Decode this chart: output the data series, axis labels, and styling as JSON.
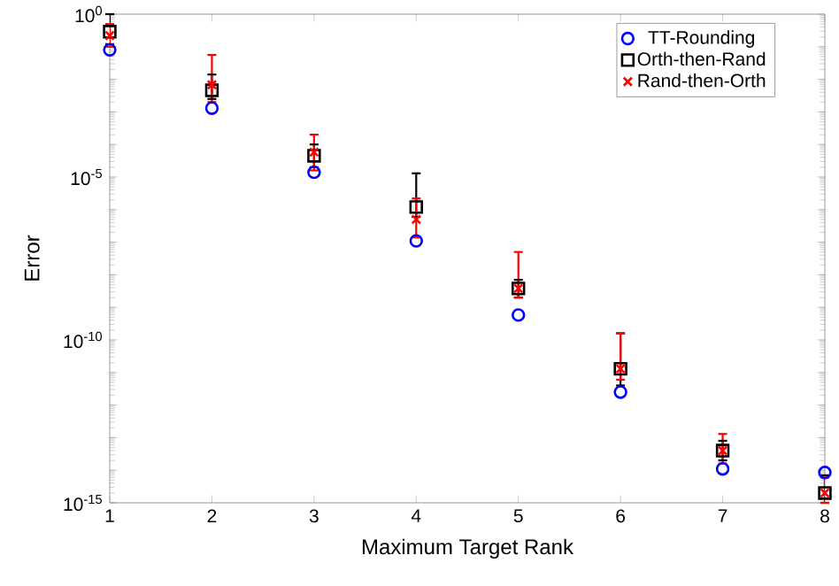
{
  "chart_data": {
    "type": "scatter",
    "xlabel": "Maximum Target Rank",
    "ylabel": "Error",
    "log": "y",
    "legend": "top right",
    "x": [
      1,
      2,
      3,
      4,
      5,
      6,
      7,
      8
    ],
    "xlim": [
      1,
      8
    ],
    "xticks": [
      1,
      2,
      3,
      4,
      5,
      6,
      7,
      8
    ],
    "ylim": [
      1e-15,
      1
    ],
    "yticks": [
      {
        "value": 1e-15,
        "label": "10$^{-15}$"
      },
      {
        "value": 1e-14,
        "label": null
      },
      {
        "value": 1e-13,
        "label": null
      },
      {
        "value": 1e-12,
        "label": null
      },
      {
        "value": 1e-11,
        "label": null
      },
      {
        "value": 1e-10,
        "label": "10$^{-10}$"
      },
      {
        "value": 1e-09,
        "label": null
      },
      {
        "value": 1e-08,
        "label": null
      },
      {
        "value": 1e-07,
        "label": null
      },
      {
        "value": 1e-06,
        "label": null
      },
      {
        "value": 1e-05,
        "label": "10$^{-5}$"
      },
      {
        "value": 0.0001,
        "label": null
      },
      {
        "value": 0.001,
        "label": null
      },
      {
        "value": 0.01,
        "label": null
      },
      {
        "value": 0.1,
        "label": null
      },
      {
        "value": 1,
        "label": "10$^{0}$"
      }
    ],
    "series": [
      {
        "name": "TT-Rounding",
        "color": "#0000ff",
        "marker": "circle",
        "values": [
          0.08,
          0.0013,
          1.4e-05,
          1.1e-07,
          5.8e-10,
          2.5e-12,
          1.1e-14,
          8.5e-15
        ]
      },
      {
        "name": "Orth-then-Rand",
        "color": "#000000",
        "marker": "square",
        "values": [
          0.29,
          0.0046,
          4.5e-05,
          1.2e-06,
          3.8e-09,
          1.3e-11,
          4e-14,
          2e-15
        ],
        "errors": [
          [
            0.12,
            1
          ],
          [
            0.0025,
            0.014
          ],
          [
            2e-05,
            0.0001
          ],
          [
            6e-07,
            1.3e-05
          ],
          [
            2e-09,
            7e-09
          ],
          [
            4e-12,
            1.6e-10
          ],
          [
            2e-14,
            8e-14
          ],
          [
            1e-15,
            7e-15
          ]
        ]
      },
      {
        "name": "Rand-then-Orth",
        "color": "#ff0000",
        "marker": "cross",
        "values": [
          0.22,
          0.0068,
          5.8e-05,
          5e-07,
          3.8e-09,
          1.3e-11,
          4e-14,
          2e-15
        ],
        "errors": [
          [
            0.1,
            0.5
          ],
          [
            0.002,
            0.056
          ],
          [
            1.6e-05,
            0.0002
          ],
          [
            1.4e-07,
            2.2e-06
          ],
          [
            2e-09,
            5e-08
          ],
          [
            6e-12,
            1.6e-10
          ],
          [
            1.6e-14,
            1.3e-13
          ],
          [
            1e-15,
            6e-15
          ]
        ]
      }
    ]
  }
}
